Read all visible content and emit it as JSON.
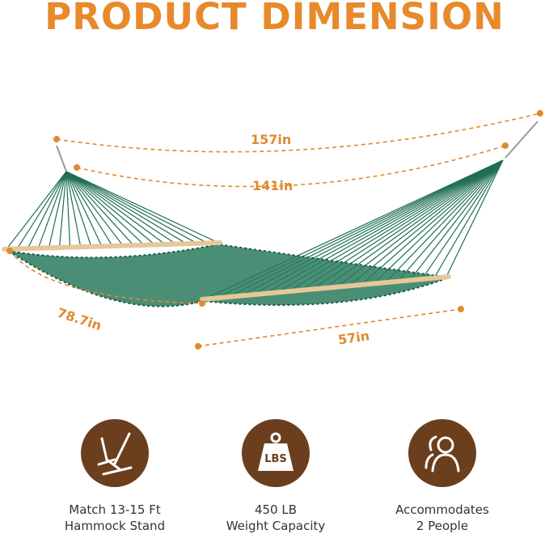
{
  "title": "PRODUCT DIMENSION",
  "colors": {
    "accent": "#e8892b",
    "icon_bg": "#6b3f1d",
    "hammock": "#1f6e55",
    "wood": "#e6c79a"
  },
  "dimensions": {
    "overall_length": "157in",
    "bed_length": "141in",
    "width": "78.7in",
    "spreader_bar": "57in"
  },
  "features": [
    {
      "icon": "hammock-stand-icon",
      "line1": "Match 13-15 Ft",
      "line2": "Hammock Stand"
    },
    {
      "icon": "weight-lbs-icon",
      "badge": "LBS",
      "line1": "450 LB",
      "line2": "Weight Capacity"
    },
    {
      "icon": "people-icon",
      "line1": "Accommodates",
      "line2": "2 People"
    }
  ]
}
